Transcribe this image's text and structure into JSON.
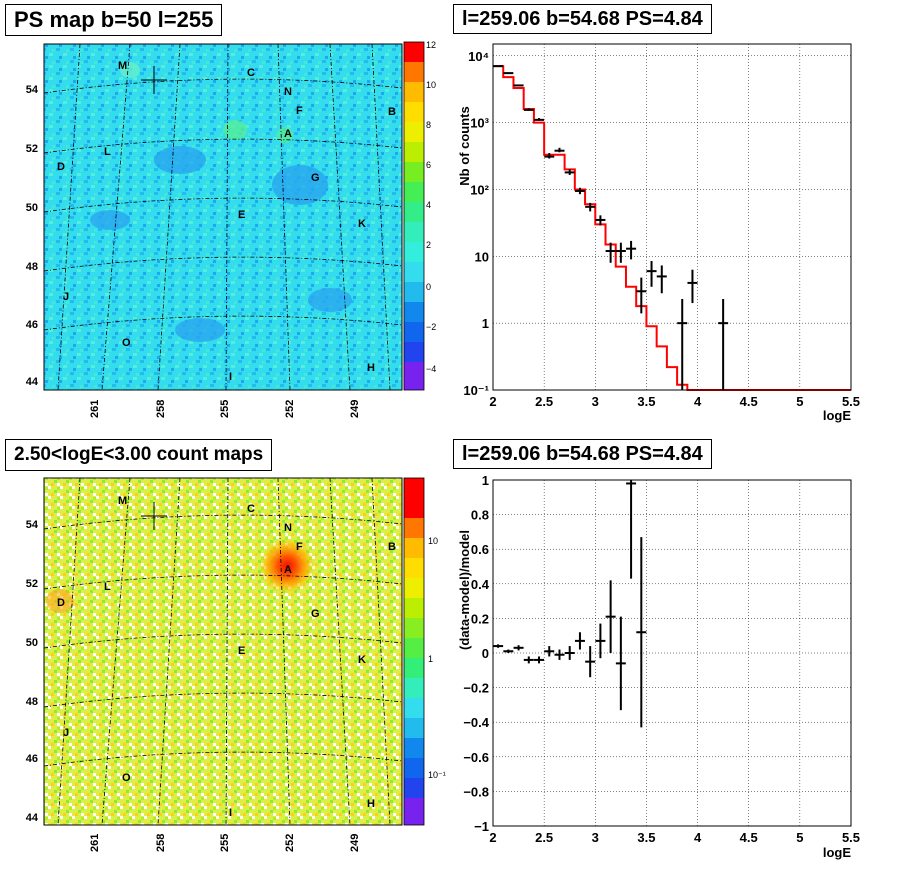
{
  "panels": {
    "tl_title": "PS map b=50 l=255",
    "tr_title": "l=259.06 b=54.68 PS=4.84",
    "bl_title": "2.50<logE<3.00 count maps",
    "br_title": "l=259.06 b=54.68 PS=4.84"
  },
  "chart_data": [
    {
      "type": "heatmap",
      "title": "PS map b=50 l=255",
      "x_ticks": [
        "261",
        "258",
        "255",
        "252",
        "249"
      ],
      "y_ticks": [
        "44",
        "46",
        "48",
        "50",
        "52",
        "54"
      ],
      "colorbar_ticks": [
        "12",
        "10",
        "8",
        "6",
        "4",
        "2",
        "0",
        "−2",
        "−4"
      ],
      "colorbar_range": [
        -5,
        12
      ],
      "source_labels": [
        "M",
        "C",
        "N",
        "F",
        "B",
        "A",
        "L",
        "D",
        "G",
        "E",
        "K",
        "J",
        "O",
        "I",
        "H"
      ],
      "marker": "cross"
    },
    {
      "type": "line",
      "title": "l=259.06 b=54.68 PS=4.84",
      "xlabel": "logE",
      "ylabel": "Nb of counts",
      "y_scale": "log",
      "xlim": [
        2,
        5.5
      ],
      "ylim": [
        0.1,
        15000
      ],
      "x_ticks": [
        "2",
        "2.5",
        "3",
        "3.5",
        "4",
        "4.5",
        "5",
        "5.5"
      ],
      "y_ticks": [
        "10⁻¹",
        "1",
        "10",
        "10²",
        "10³",
        "10⁴"
      ],
      "model_step": {
        "name": "model",
        "color": "#ff0000",
        "edges": [
          2.0,
          2.1,
          2.2,
          2.3,
          2.4,
          2.5,
          2.6,
          2.7,
          2.8,
          2.9,
          3.0,
          3.1,
          3.2,
          3.3,
          3.4,
          3.5,
          3.6,
          3.7,
          3.8,
          3.9,
          4.0,
          5.5
        ],
        "values": [
          7000,
          4800,
          3300,
          1600,
          1000,
          330,
          330,
          200,
          100,
          60,
          30,
          15,
          7,
          3.5,
          1.8,
          0.9,
          0.45,
          0.22,
          0.12,
          0.1,
          0.1
        ]
      },
      "data_points": {
        "name": "data",
        "x": [
          2.05,
          2.15,
          2.25,
          2.35,
          2.45,
          2.55,
          2.65,
          2.75,
          2.85,
          2.95,
          3.05,
          3.15,
          3.25,
          3.35,
          3.45,
          3.55,
          3.65,
          3.85,
          3.95,
          4.25
        ],
        "y": [
          7000,
          5500,
          3600,
          1550,
          1100,
          310,
          380,
          180,
          95,
          55,
          35,
          12,
          12,
          13,
          3,
          6,
          5,
          1,
          4,
          1
        ],
        "y_err_low": [
          6900,
          5400,
          3540,
          1510,
          1070,
          290,
          360,
          165,
          85,
          47,
          29,
          8,
          8,
          9,
          1.4,
          3.5,
          2.8,
          0.1,
          2,
          0.1
        ],
        "y_err_high": [
          7170,
          5650,
          3720,
          1630,
          1170,
          350,
          420,
          200,
          106,
          63,
          41,
          16,
          16,
          17,
          4.8,
          8.5,
          7.3,
          2.3,
          6.3,
          2.3
        ]
      }
    },
    {
      "type": "heatmap",
      "title": "2.50<logE<3.00 count maps",
      "x_ticks": [
        "261",
        "258",
        "255",
        "252",
        "249"
      ],
      "y_ticks": [
        "44",
        "46",
        "48",
        "50",
        "52",
        "54"
      ],
      "colorbar_ticks": [
        "10",
        "1",
        "10⁻¹"
      ],
      "colorbar_scale": "log",
      "source_labels": [
        "M",
        "C",
        "N",
        "F",
        "B",
        "A",
        "L",
        "D",
        "G",
        "E",
        "K",
        "J",
        "O",
        "I",
        "H"
      ],
      "marker": "cross"
    },
    {
      "type": "scatter",
      "title": "l=259.06 b=54.68 PS=4.84",
      "xlabel": "logE",
      "ylabel": "(data-model)/model",
      "xlim": [
        2,
        5.5
      ],
      "ylim": [
        -1,
        1
      ],
      "x_ticks": [
        "2",
        "2.5",
        "3",
        "3.5",
        "4",
        "4.5",
        "5",
        "5.5"
      ],
      "y_ticks": [
        "1",
        "0.8",
        "0.6",
        "0.4",
        "0.2",
        "0",
        "−0.2",
        "−0.4",
        "−0.6",
        "−0.8",
        "−1"
      ],
      "points": {
        "x": [
          2.05,
          2.15,
          2.25,
          2.35,
          2.45,
          2.55,
          2.65,
          2.75,
          2.85,
          2.95,
          3.05,
          3.15,
          3.25,
          3.35,
          3.45
        ],
        "y": [
          0.04,
          0.01,
          0.03,
          -0.04,
          -0.04,
          0.01,
          -0.01,
          0.0,
          0.07,
          -0.05,
          0.07,
          0.21,
          -0.06,
          0.98,
          0.12
        ],
        "err": [
          0.01,
          0.01,
          0.015,
          0.02,
          0.02,
          0.03,
          0.03,
          0.04,
          0.05,
          0.09,
          0.1,
          0.21,
          0.27,
          0.55,
          0.55
        ]
      }
    }
  ]
}
